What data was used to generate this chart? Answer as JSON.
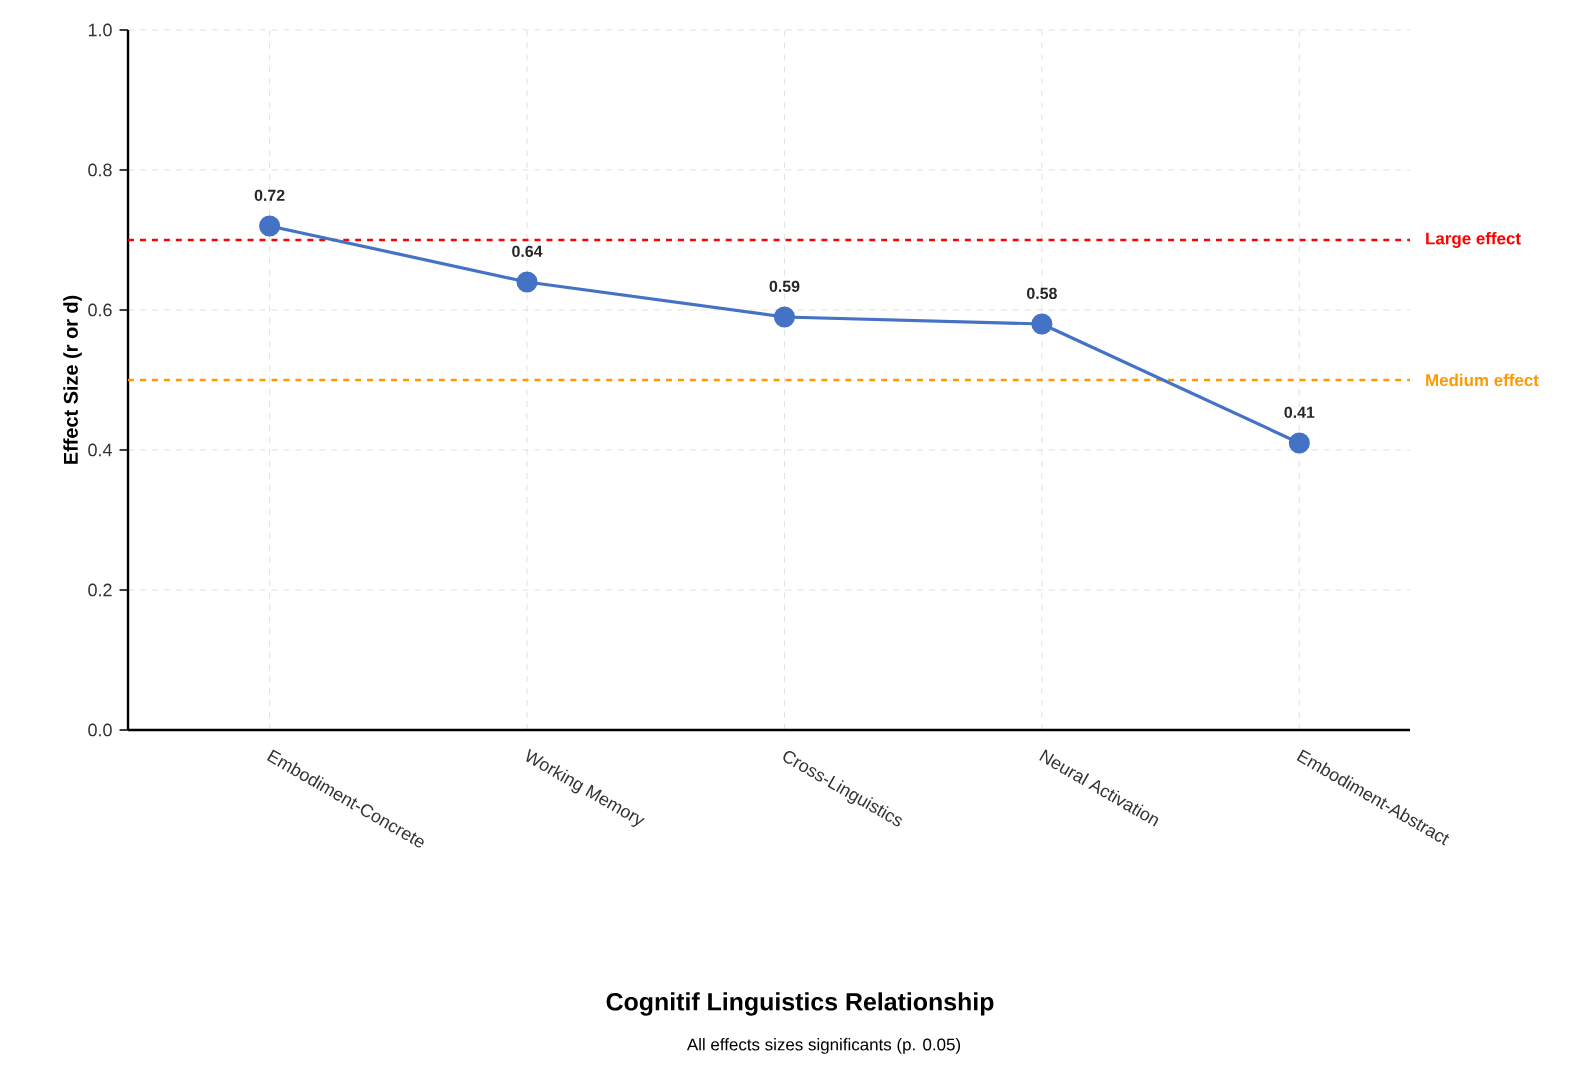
{
  "chart_data": {
    "type": "line",
    "title": "Cognitif Linguistics Relationship",
    "subtitle": "All effects sizes significants (p. 0.05)",
    "ylabel": "Effect Size (r or d)",
    "categories": [
      "Embodiment-Concrete",
      "Working Memory",
      "Cross-Linguistics",
      "Neural Activation",
      "Embodiment-Abstract"
    ],
    "series": [
      {
        "color": "#4472c4",
        "values": [
          0.72,
          0.64,
          0.59,
          0.58,
          0.41
        ]
      }
    ],
    "ylim": [
      0,
      1
    ],
    "yticks": [
      {
        "value": 0,
        "label": "0.0"
      },
      {
        "value": 0.2,
        "label": "0.2"
      },
      {
        "value": 0.4,
        "label": "0.4"
      },
      {
        "value": 0.6,
        "label": "0.6"
      },
      {
        "value": 0.8,
        "label": "0.8"
      },
      {
        "value": 1,
        "label": "1.0"
      }
    ],
    "ref_lines": [
      {
        "axis": "y",
        "value": 0.7,
        "label": "Large effect",
        "color": "#ff0000",
        "line_style": "dashed"
      },
      {
        "axis": "y",
        "value": 0.5,
        "label": "Medium effect",
        "color": "#ff9900",
        "line_style": "dashed"
      }
    ],
    "grid": true,
    "marker": "circle",
    "line_style": "solid",
    "data_labels": true
  }
}
